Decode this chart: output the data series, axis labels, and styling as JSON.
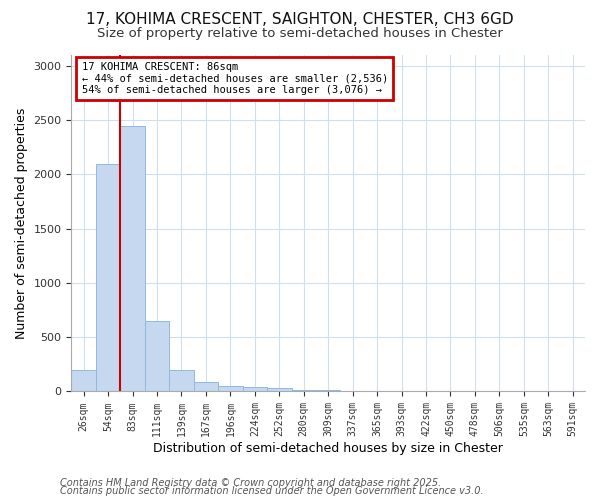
{
  "title": "17, KOHIMA CRESCENT, SAIGHTON, CHESTER, CH3 6GD",
  "subtitle": "Size of property relative to semi-detached houses in Chester",
  "xlabel": "Distribution of semi-detached houses by size in Chester",
  "ylabel": "Number of semi-detached properties",
  "bins": [
    "26sqm",
    "54sqm",
    "83sqm",
    "111sqm",
    "139sqm",
    "167sqm",
    "196sqm",
    "224sqm",
    "252sqm",
    "280sqm",
    "309sqm",
    "337sqm",
    "365sqm",
    "393sqm",
    "422sqm",
    "450sqm",
    "478sqm",
    "506sqm",
    "535sqm",
    "563sqm",
    "591sqm"
  ],
  "values": [
    195,
    2100,
    2450,
    650,
    200,
    90,
    50,
    38,
    28,
    18,
    10,
    0,
    0,
    0,
    0,
    0,
    0,
    0,
    0,
    0,
    0
  ],
  "bar_color": "#c5d8f0",
  "bar_edge_color": "#90b8e0",
  "vline_x_index": 2,
  "vline_color": "#cc0000",
  "annotation_title": "17 KOHIMA CRESCENT: 86sqm",
  "annotation_line2": "← 44% of semi-detached houses are smaller (2,536)",
  "annotation_line3": "54% of semi-detached houses are larger (3,076) →",
  "annotation_box_edge_color": "#cc0000",
  "ylim": [
    0,
    3100
  ],
  "yticks": [
    0,
    500,
    1000,
    1500,
    2000,
    2500,
    3000
  ],
  "footnote1": "Contains HM Land Registry data © Crown copyright and database right 2025.",
  "footnote2": "Contains public sector information licensed under the Open Government Licence v3.0.",
  "bg_color": "#ffffff",
  "title_fontsize": 11,
  "subtitle_fontsize": 9.5,
  "tick_fontsize": 7,
  "label_fontsize": 9,
  "footnote_fontsize": 7
}
